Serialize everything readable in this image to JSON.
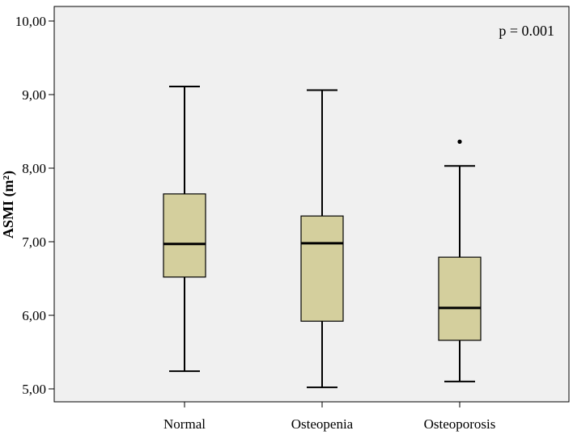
{
  "chart_data": {
    "type": "boxplot",
    "title": "",
    "xlabel": "",
    "ylabel": "ASMI (m²)",
    "ylim": [
      5.0,
      10.0
    ],
    "y_ticks": [
      "5,00",
      "6,00",
      "7,00",
      "8,00",
      "9,00",
      "10,00"
    ],
    "y_tick_values": [
      5,
      6,
      7,
      8,
      9,
      10
    ],
    "grid": false,
    "categories": [
      "Normal",
      "Osteopenia",
      "Osteoporosis"
    ],
    "boxes": [
      {
        "category": "Normal",
        "whisker_low": 5.24,
        "q1": 6.52,
        "median": 6.97,
        "q3": 7.65,
        "whisker_high": 9.11,
        "outliers": []
      },
      {
        "category": "Osteopenia",
        "whisker_low": 5.02,
        "q1": 5.92,
        "median": 6.98,
        "q3": 7.35,
        "whisker_high": 9.06,
        "outliers": []
      },
      {
        "category": "Osteoporosis",
        "whisker_low": 5.1,
        "q1": 5.66,
        "median": 6.1,
        "q3": 6.79,
        "whisker_high": 8.03,
        "outliers": [
          8.36
        ]
      }
    ],
    "annotation": "p = 0.001",
    "colors": {
      "plot_background": "#f0f0f0",
      "box_fill": "#d4cf9d",
      "stroke": "#000000"
    }
  }
}
